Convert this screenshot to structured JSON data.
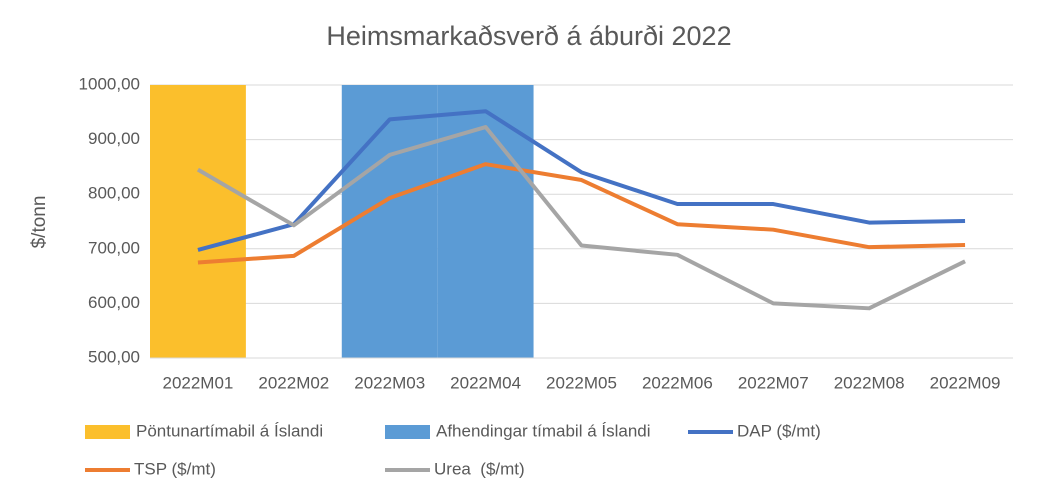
{
  "chart_data": {
    "type": "line",
    "title": "Heimsmarkaðsverð á áburði 2022",
    "y_label": "$/tonn",
    "categories": [
      "2022M01",
      "2022M02",
      "2022M03",
      "2022M04",
      "2022M05",
      "2022M06",
      "2022M07",
      "2022M08",
      "2022M09"
    ],
    "series": [
      {
        "name": "Pöntunartímabil á Íslandi",
        "type": "bar",
        "color": "#fbbf2c",
        "values": [
          1000,
          null,
          null,
          null,
          null,
          null,
          null,
          null,
          null
        ]
      },
      {
        "name": "Afhendingar tímabil á Íslandi",
        "type": "bar",
        "color": "#5b9bd5",
        "values": [
          null,
          null,
          1000,
          1000,
          null,
          null,
          null,
          null,
          null
        ]
      },
      {
        "name": "DAP ($/mt)",
        "type": "line",
        "color": "#4472c4",
        "values": [
          698,
          745,
          937,
          952,
          840,
          782,
          782,
          748,
          751
        ]
      },
      {
        "name": "TSP ($/mt)",
        "type": "line",
        "color": "#ed7d31",
        "values": [
          675,
          687,
          793,
          855,
          826,
          745,
          735,
          703,
          707
        ]
      },
      {
        "name": "Urea  ($/mt)",
        "type": "line",
        "color": "#a5a5a5",
        "values": [
          845,
          743,
          872,
          923,
          706,
          689,
          600,
          591,
          677
        ]
      }
    ],
    "ylim": [
      500,
      1000
    ],
    "yticks": [
      {
        "value": 500,
        "label": "500,00"
      },
      {
        "value": 600,
        "label": "600,00"
      },
      {
        "value": 700,
        "label": "700,00"
      },
      {
        "value": 800,
        "label": "800,00"
      },
      {
        "value": 900,
        "label": "900,00"
      },
      {
        "value": 1000,
        "label": "1000,00"
      }
    ],
    "grid": true,
    "legend": "bottom"
  }
}
